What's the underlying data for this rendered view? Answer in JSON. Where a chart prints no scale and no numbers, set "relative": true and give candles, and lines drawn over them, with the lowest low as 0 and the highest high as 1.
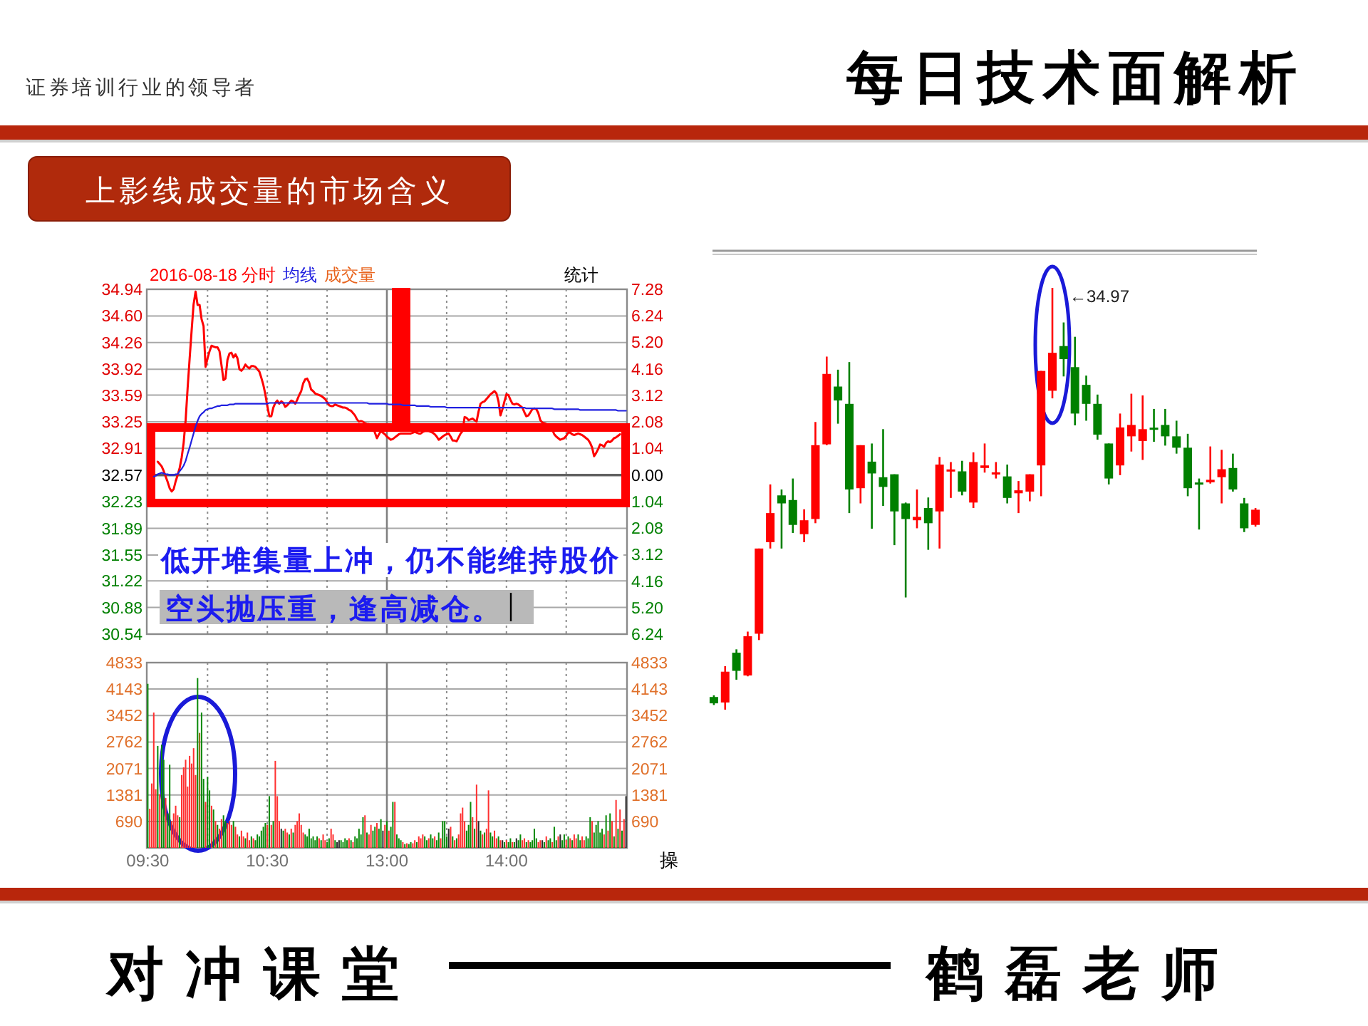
{
  "chart_data": [
    {
      "type": "line",
      "subtitle": "上影线成交量的市场含义",
      "legend": "top left",
      "categories": [
        null,
        null,
        null,
        null,
        null,
        null,
        null,
        null,
        null,
        null,
        null,
        null,
        null,
        null,
        null,
        null,
        null,
        null,
        null,
        null,
        null,
        null,
        null,
        null,
        null,
        null,
        null,
        null,
        null,
        null,
        null,
        null,
        null,
        null,
        null,
        null,
        null,
        null,
        null,
        null,
        null,
        null,
        null,
        null,
        null,
        null,
        null,
        null,
        null,
        null,
        null,
        null,
        null,
        null,
        null,
        null,
        null,
        null,
        null,
        null,
        null,
        null,
        null,
        null,
        null,
        null,
        null,
        null,
        null,
        null,
        null,
        null,
        null,
        null,
        null,
        null,
        null,
        null,
        null,
        null,
        null,
        null,
        null,
        null,
        null,
        null,
        null,
        null,
        null,
        null,
        null,
        null,
        null,
        null,
        null,
        null,
        null,
        null,
        null,
        null,
        null,
        null,
        null,
        null,
        null,
        null,
        null,
        null,
        null,
        null,
        null,
        null,
        null,
        null,
        null,
        null,
        null,
        null,
        null,
        null,
        null,
        null,
        null,
        null,
        null,
        null,
        null,
        null,
        null,
        null,
        null,
        null,
        null,
        null,
        null,
        null,
        null,
        null,
        null,
        null,
        null,
        null,
        null,
        null,
        null,
        null,
        null,
        null,
        null,
        null,
        null,
        null,
        null,
        null,
        null,
        null,
        null,
        null,
        null,
        null,
        null,
        null,
        null,
        null,
        null,
        null,
        null,
        null,
        null,
        null,
        null,
        null,
        null,
        null,
        null,
        null,
        null,
        null,
        null,
        null,
        null,
        null,
        null,
        null,
        null,
        null,
        null,
        null,
        null,
        null,
        null,
        null,
        null,
        null,
        null,
        null,
        null,
        null,
        null,
        null,
        null,
        null,
        null,
        null,
        null,
        null,
        null,
        null,
        null,
        null,
        null,
        null,
        null,
        null,
        null,
        null,
        null,
        null,
        null,
        null,
        null,
        null,
        null,
        null,
        null,
        null,
        null,
        null,
        null,
        null,
        null,
        null,
        null,
        null,
        null,
        null,
        null,
        null,
        null,
        null,
        null
      ],
      "series": [
        {
          "name": "2016-08-18 分时",
          "color": "#ff0000",
          "values": [
            null,
            null,
            null,
            null,
            null,
            32.74,
            32.71,
            32.68,
            32.62,
            32.55,
            32.48,
            32.4,
            32.36,
            32.39,
            32.49,
            32.57,
            32.66,
            32.79,
            32.98,
            33.27,
            33.68,
            34.05,
            34.41,
            34.75,
            34.91,
            34.74,
            34.74,
            34.56,
            34.47,
            33.95,
            34.06,
            34.15,
            34.22,
            34.21,
            34.2,
            34.2,
            34.15,
            33.97,
            33.78,
            33.8,
            34.04,
            34.12,
            34.13,
            34.07,
            34.11,
            34.06,
            33.92,
            33.9,
            33.93,
            33.98,
            33.95,
            33.93,
            33.96,
            33.96,
            33.95,
            33.92,
            33.89,
            33.81,
            33.72,
            33.6,
            33.45,
            33.32,
            33.32,
            33.43,
            33.49,
            33.52,
            33.48,
            33.51,
            33.49,
            33.44,
            33.46,
            33.49,
            33.52,
            33.51,
            33.48,
            33.53,
            33.59,
            33.64,
            33.74,
            33.79,
            33.8,
            33.75,
            33.66,
            33.64,
            33.61,
            33.6,
            33.59,
            33.58,
            33.56,
            33.54,
            33.5,
            33.46,
            33.45,
            33.45,
            33.47,
            33.46,
            33.45,
            33.44,
            33.43,
            33.43,
            33.42,
            33.4,
            33.39,
            33.36,
            33.33,
            33.28,
            33.25,
            33.26,
            33.25,
            33.23,
            33.22,
            33.22,
            33.2,
            33.19,
            33.11,
            33.04,
            33.09,
            33.13,
            33.11,
            33.09,
            33.06,
            33.04,
            33.02,
            33.03,
            33.05,
            33.07,
            33.09,
            33.1,
            33.1,
            33.1,
            33.1,
            33.1,
            33.1,
            33.11,
            33.12,
            33.11,
            33.1,
            33.1,
            33.12,
            33.13,
            33.13,
            33.13,
            33.12,
            33.11,
            33.09,
            33.06,
            33.02,
            33.04,
            33.06,
            33.08,
            33.09,
            33.1,
            33.06,
            33.01,
            33.01,
            33.0,
            33.05,
            33.1,
            33.13,
            33.31,
            33.3,
            33.27,
            33.28,
            33.29,
            33.27,
            33.25,
            33.38,
            33.48,
            33.5,
            33.51,
            33.54,
            33.57,
            33.6,
            33.62,
            33.64,
            33.61,
            33.51,
            33.33,
            33.41,
            33.51,
            33.6,
            33.59,
            33.53,
            33.48,
            33.47,
            33.48,
            33.47,
            33.45,
            33.43,
            33.37,
            33.32,
            33.33,
            33.37,
            33.41,
            33.42,
            33.41,
            33.36,
            33.27,
            33.24,
            33.23,
            33.22,
            33.21,
            33.2,
            33.15,
            33.09,
            33.06,
            33.04,
            33.02,
            33.03,
            33.04,
            33.07,
            33.11,
            33.11,
            33.09,
            33.08,
            33.09,
            33.1,
            33.09,
            33.08,
            33.06,
            33.04,
            33.02,
            32.98,
            32.92,
            32.81,
            32.85,
            32.9,
            32.96,
            32.95,
            32.93,
            32.98,
            33.0,
            32.99,
            33.01,
            33.04,
            33.05,
            33.07,
            33.09,
            null,
            null,
            null
          ]
        },
        {
          "name": "均线",
          "color": "#2020e0",
          "values": [
            null,
            null,
            null,
            32.55,
            32.56,
            32.58,
            32.59,
            32.6,
            32.59,
            32.58,
            32.58,
            32.57,
            32.57,
            32.57,
            32.58,
            32.58,
            32.62,
            32.65,
            32.69,
            32.75,
            32.84,
            32.92,
            33.01,
            33.1,
            33.19,
            33.26,
            33.32,
            33.35,
            33.37,
            33.4,
            33.41,
            33.42,
            33.42,
            33.43,
            33.44,
            33.45,
            33.45,
            33.46,
            33.46,
            33.46,
            33.46,
            33.47,
            33.47,
            33.47,
            33.48,
            33.48,
            33.48,
            33.48,
            33.48,
            33.48,
            33.48,
            33.48,
            33.48,
            33.48,
            33.48,
            33.48,
            33.48,
            33.48,
            33.48,
            33.48,
            33.48,
            33.49,
            33.49,
            33.49,
            33.49,
            33.49,
            33.49,
            33.49,
            33.49,
            33.49,
            33.49,
            33.49,
            33.49,
            33.49,
            33.49,
            33.49,
            33.49,
            33.49,
            33.49,
            33.49,
            33.49,
            33.49,
            33.49,
            33.49,
            33.49,
            33.49,
            33.49,
            33.49,
            33.49,
            33.49,
            33.49,
            33.49,
            33.49,
            33.49,
            33.49,
            33.49,
            33.49,
            33.49,
            33.49,
            33.49,
            33.49,
            33.49,
            33.49,
            33.49,
            33.49,
            33.49,
            33.49,
            33.49,
            33.49,
            33.49,
            33.49,
            33.48,
            33.48,
            33.48,
            33.48,
            33.48,
            33.48,
            33.48,
            33.48,
            33.48,
            33.48,
            33.47,
            33.47,
            33.47,
            33.47,
            33.47,
            33.47,
            33.47,
            33.46,
            33.46,
            33.46,
            33.46,
            33.46,
            33.46,
            33.46,
            33.45,
            33.45,
            33.45,
            33.45,
            33.45,
            33.45,
            33.45,
            33.44,
            33.44,
            33.44,
            33.44,
            33.44,
            33.44,
            33.44,
            33.44,
            33.43,
            33.43,
            33.43,
            33.43,
            33.43,
            33.43,
            33.43,
            33.43,
            33.43,
            33.43,
            33.43,
            33.43,
            33.43,
            33.43,
            33.43,
            33.43,
            33.43,
            33.43,
            33.43,
            33.43,
            33.43,
            33.43,
            33.43,
            33.43,
            33.43,
            33.43,
            33.43,
            33.43,
            33.43,
            33.43,
            33.43,
            33.43,
            33.43,
            33.43,
            33.43,
            33.43,
            33.43,
            33.43,
            33.43,
            33.43,
            33.42,
            33.42,
            33.42,
            33.42,
            33.42,
            33.42,
            33.42,
            33.42,
            33.42,
            33.42,
            33.42,
            33.42,
            33.42,
            33.42,
            33.41,
            33.41,
            33.41,
            33.41,
            33.41,
            33.41,
            33.41,
            33.41,
            33.41,
            33.41,
            33.41,
            33.41,
            33.41,
            33.4,
            33.4,
            33.4,
            33.4,
            33.4,
            33.4,
            33.4,
            33.4,
            33.4,
            33.4,
            33.4,
            33.4,
            33.4,
            33.4,
            33.4,
            33.4,
            33.4,
            33.4,
            33.4,
            33.39,
            33.39,
            33.39,
            33.39,
            33.39
          ]
        }
      ],
      "ylim": [
        30.54,
        34.94
      ],
      "yticks": [
        34.94,
        {
          "value": 34.6,
          "label": "34.60"
        },
        34.26,
        33.92,
        33.59,
        33.25,
        32.91,
        32.57,
        32.23,
        31.89,
        31.55,
        31.22,
        30.88,
        30.54
      ],
      "y2lim": [
        -6.24,
        7.28
      ],
      "y2ticks": [
        7.28,
        6.24,
        {
          "value": 5.2,
          "label": "5.20"
        },
        4.16,
        3.12,
        2.08,
        1.04,
        {
          "value": 0,
          "label": "0.00"
        },
        {
          "value": -1.04,
          "label": "1.04"
        },
        {
          "value": -2.08,
          "label": "2.08"
        },
        {
          "value": -3.12,
          "label": "3.12"
        },
        {
          "value": -4.16,
          "label": "4.16"
        },
        {
          "value": -5.2,
          "label": "5.20"
        },
        {
          "value": -6.24,
          "label": "6.24"
        }
      ],
      "grid": true,
      "ref_lines": [
        {
          "axis": "y",
          "value": 32.57,
          "color": "#606060"
        }
      ],
      "tick_labels": "y",
      "annotations": [
        "证券培训行业的领导者",
        "成交量",
        "统计",
        "低开堆集量上冲，仍不能维持股价",
        "空头抛压重，逢高减仓。",
        "对冲课堂"
      ]
    },
    {
      "type": "bar",
      "categories": [
        "09:30",
        null,
        null,
        null,
        null,
        null,
        null,
        null,
        null,
        null,
        null,
        null,
        null,
        null,
        null,
        null,
        null,
        null,
        null,
        null,
        null,
        null,
        null,
        null,
        null,
        null,
        null,
        null,
        null,
        null,
        null,
        null,
        null,
        null,
        null,
        null,
        null,
        null,
        null,
        null,
        null,
        null,
        null,
        null,
        null,
        null,
        null,
        null,
        null,
        null,
        null,
        null,
        null,
        null,
        null,
        null,
        null,
        null,
        null,
        null,
        "10:30",
        null,
        null,
        null,
        null,
        null,
        null,
        null,
        null,
        null,
        null,
        null,
        null,
        null,
        null,
        null,
        null,
        null,
        null,
        null,
        null,
        null,
        null,
        null,
        null,
        null,
        null,
        null,
        null,
        null,
        null,
        null,
        null,
        null,
        null,
        null,
        null,
        null,
        null,
        null,
        null,
        null,
        null,
        null,
        null,
        null,
        null,
        null,
        null,
        null,
        null,
        null,
        null,
        null,
        null,
        null,
        null,
        null,
        null,
        null,
        "13:00",
        null,
        null,
        null,
        null,
        null,
        null,
        null,
        null,
        null,
        null,
        null,
        null,
        null,
        null,
        null,
        null,
        null,
        null,
        null,
        null,
        null,
        null,
        null,
        null,
        null,
        null,
        null,
        null,
        null,
        null,
        null,
        null,
        null,
        null,
        null,
        null,
        null,
        null,
        null,
        null,
        null,
        null,
        null,
        null,
        null,
        null,
        null,
        null,
        null,
        null,
        null,
        null,
        null,
        null,
        null,
        null,
        null,
        null,
        null,
        "14:00",
        null,
        null,
        null,
        null,
        null,
        null,
        null,
        null,
        null,
        null,
        null,
        null,
        null,
        null,
        null,
        null,
        null,
        null,
        null,
        null,
        null,
        null,
        null,
        null,
        null,
        null,
        null,
        null,
        null,
        null,
        null,
        null,
        null,
        null,
        null,
        null,
        null,
        null,
        null,
        null,
        null,
        null,
        null,
        null,
        null,
        null,
        null,
        null,
        null,
        null,
        null,
        null,
        null,
        null,
        null,
        null,
        null,
        null,
        null,
        null
      ],
      "values": [
        4280,
        1020,
        1680,
        3530,
        1530,
        2660,
        1400,
        2690,
        2300,
        1300,
        900,
        2170,
        700,
        900,
        1100,
        850,
        800,
        1900,
        2100,
        2300,
        1600,
        2400,
        2200,
        2600,
        1900,
        4430,
        3000,
        3530,
        1800,
        1200,
        1850,
        1500,
        1100,
        1000,
        700,
        600,
        500,
        750,
        850,
        700,
        650,
        700,
        600,
        700,
        550,
        350,
        300,
        450,
        300,
        250,
        400,
        200,
        300,
        250,
        200,
        350,
        300,
        450,
        550,
        650,
        600,
        1350,
        600,
        700,
        2270,
        1350,
        700,
        500,
        450,
        500,
        400,
        350,
        500,
        400,
        600,
        700,
        900,
        600,
        400,
        350,
        300,
        500,
        250,
        300,
        200,
        300,
        250,
        200,
        350,
        200,
        150,
        250,
        500,
        350,
        200,
        150,
        200,
        200,
        150,
        250,
        200,
        250,
        200,
        150,
        300,
        250,
        500,
        350,
        800,
        850,
        400,
        350,
        600,
        450,
        550,
        650,
        500,
        750,
        450,
        600,
        700,
        450,
        550,
        1200,
        1200,
        350,
        250,
        200,
        150,
        100,
        120,
        100,
        150,
        120,
        200,
        150,
        300,
        250,
        350,
        300,
        200,
        250,
        350,
        250,
        300,
        200,
        400,
        250,
        700,
        700,
        300,
        500,
        550,
        300,
        200,
        250,
        350,
        900,
        1050,
        700,
        450,
        600,
        1200,
        800,
        500,
        1650,
        700,
        450,
        350,
        400,
        500,
        1500,
        400,
        300,
        450,
        250,
        300,
        200,
        200,
        150,
        200,
        150,
        250,
        150,
        150,
        250,
        200,
        350,
        200,
        250,
        150,
        200,
        150,
        200,
        500,
        250,
        150,
        200,
        200,
        150,
        300,
        200,
        250,
        150,
        550,
        200,
        300,
        350,
        200,
        350,
        200,
        300,
        250,
        200,
        350,
        250,
        350,
        200,
        300,
        200,
        300,
        250,
        800,
        700,
        400,
        600,
        700,
        400,
        500,
        350,
        850,
        450,
        900,
        700,
        300,
        1250,
        500,
        1000,
        450,
        750,
        1350
      ],
      "colors": [
        "#0a8a0a",
        "#ff3030",
        "#ff3030",
        "#ff3030",
        "#ff3030",
        "#0a8a0a",
        "#ff3030",
        "#0a8a0a",
        "#0a8a0a",
        "#ff3030",
        "#0a8a0a",
        "#0a8a0a",
        "#ff3030",
        "#ff3030",
        "#ff3030",
        "#ff3030",
        "#0a8a0a",
        "#ff3030",
        "#ff3030",
        "#ff3030",
        "#ff3030",
        "#ff3030",
        "#ff3030",
        "#ff3030",
        "#ff3030",
        "#0a8a0a",
        "#8a6a10",
        "#0a8a0a",
        "#0a8a0a",
        "#ff3030",
        "#0a8a0a",
        "#0a8a0a",
        "#ff3030",
        "#0a8a0a",
        "#ff3030",
        "#0a8a0a",
        "#ff3030",
        "#ff3030",
        "#0a8a0a",
        "#0a8a0a",
        "#ff3030",
        "#ff3030",
        "#ff3030",
        "#0a8a0a",
        "#ff3030",
        "#ff3030",
        "#0a8a0a",
        "#ff3030",
        "#ff3030",
        "#0a8a0a",
        "#ff3030",
        "#ff3030",
        "#0a8a0a",
        "#ff3030",
        "#0a8a0a",
        "#0a8a0a",
        "#0a8a0a",
        "#0a8a0a",
        "#0a8a0a",
        "#0a8a0a",
        "#ff3030",
        "#0a8a0a",
        "#ff3030",
        "#0a8a0a",
        "#ff3030",
        "#ff3030",
        "#ff3030",
        "#2a2a2a",
        "#0a8a0a",
        "#ff3030",
        "#ff3030",
        "#0a8a0a",
        "#ff3030",
        "#0a8a0a",
        "#ff3030",
        "#ff3030",
        "#ff3030",
        "#ff3030",
        "#ff3030",
        "#0a8a0a",
        "#0a8a0a",
        "#0a8a0a",
        "#0a8a0a",
        "#0a8a0a",
        "#0a8a0a",
        "#0a8a0a",
        "#ff3030",
        "#0a8a0a",
        "#ff3030",
        "#ff3030",
        "#0a8a0a",
        "#0a8a0a",
        "#ff3030",
        "#ff3030",
        "#0a8a0a",
        "#2a2a2a",
        "#2a2a2a",
        "#0a8a0a",
        "#0a8a0a",
        "#0a8a0a",
        "#0a8a0a",
        "#ff3030",
        "#0a8a0a",
        "#ff3030",
        "#0a8a0a",
        "#0a8a0a",
        "#0a8a0a",
        "#0a8a0a",
        "#0a8a0a",
        "#ff3030",
        "#0a8a0a",
        "#ff3030",
        "#ff3030",
        "#0a8a0a",
        "#0a8a0a",
        "#ff3030",
        "#0a8a0a",
        "#0a8a0a",
        "#2a2a2a",
        "#ff3030",
        "#0a8a0a",
        "#ff3030",
        "#0a8a0a",
        "#0a8a0a",
        "#ff3030",
        "#0a8a0a",
        "#0a8a0a",
        "#0a8a0a",
        "#ff3030",
        "#0a8a0a",
        "#ff3030",
        "#0a8a0a",
        "#0a8a0a",
        "#ff3030",
        "#ff3030",
        "#0a8a0a",
        "#ff3030",
        "#ff3030",
        "#ff3030",
        "#0a8a0a",
        "#0a8a0a",
        "#ff3030",
        "#0a8a0a",
        "#0a8a0a",
        "#ff3030",
        "#0a8a0a",
        "#0a8a0a",
        "#ff3030",
        "#0a8a0a",
        "#0a8a0a",
        "#0a8a0a",
        "#2a2a2a",
        "#ff3030",
        "#0a8a0a",
        "#ff3030",
        "#0a8a0a",
        "#ff3030",
        "#ff3030",
        "#ff3030",
        "#ff3030",
        "#0a8a0a",
        "#0a8a0a",
        "#0a8a0a",
        "#ff3030",
        "#0a8a0a",
        "#ff3030",
        "#2a2a2a",
        "#0a8a0a",
        "#ff3030",
        "#0a8a0a",
        "#ff3030",
        "#ff3030",
        "#0a8a0a",
        "#0a8a0a",
        "#ff3030",
        "#ff3030",
        "#0a8a0a",
        "#ff3030",
        "#2a2a2a",
        "#0a8a0a",
        "#ff3030",
        "#0a8a0a",
        "#0a8a0a",
        "#ff3030",
        "#0a8a0a",
        "#2a2a2a",
        "#0a8a0a",
        "#0a8a0a",
        "#ff3030",
        "#ff3030",
        "#0a8a0a",
        "#ff3030",
        "#0a8a0a",
        "#0a8a0a",
        "#0a8a0a",
        "#0a8a0a",
        "#ff3030",
        "#ff3030",
        "#2a2a2a",
        "#0a8a0a",
        "#ff3030",
        "#0a8a0a",
        "#0a8a0a",
        "#ff3030",
        "#0a8a0a",
        "#0a8a0a",
        "#ff3030",
        "#2a2a2a",
        "#0a8a0a",
        "#0a8a0a",
        "#ff3030",
        "#0a8a0a",
        "#ff3030",
        "#0a8a0a",
        "#ff3030",
        "#ff3030",
        "#0a8a0a",
        "#0a8a0a",
        "#ff3030",
        "#ff3030",
        "#0a8a0a",
        "#0a8a0a",
        "#0a8a0a",
        "#ff3030",
        "#0a8a0a",
        "#0a8a0a",
        "#0a8a0a",
        "#0a8a0a",
        "#0a8a0a",
        "#ff3030",
        "#0a8a0a",
        "#ff3030",
        "#0a8a0a",
        "#ff3030",
        "#0a8a0a",
        "#ff3030",
        "#0a8a0a",
        "#ff3030",
        "#0a8a0a",
        "#ff3030",
        "#2a2a2a"
      ],
      "ylim": [
        0,
        4833
      ],
      "yticks": [
        690,
        1381,
        2071,
        2762,
        3452,
        4143,
        4833
      ],
      "y2lim": [
        0,
        4833
      ],
      "y2ticks": [
        690,
        1381,
        2071,
        2762,
        3452,
        4143,
        4833
      ],
      "grid": true,
      "annotations": [
        "操"
      ]
    },
    {
      "type": "candlestick",
      "title": "每日技术面解析",
      "relative": true,
      "categories": [
        null,
        null,
        null,
        null,
        null,
        null,
        null,
        null,
        null,
        null,
        null,
        null,
        null,
        null,
        null,
        null,
        null,
        null,
        null,
        null,
        null,
        null,
        null,
        null,
        null,
        null,
        null,
        null,
        null,
        null,
        null,
        null,
        null,
        null,
        null,
        null,
        null,
        null,
        null,
        null,
        null,
        null,
        null,
        null,
        null,
        null,
        null,
        null,
        null
      ],
      "ohlc": [
        [
          0.03,
          0.034,
          0.011,
          0.015
        ],
        [
          0.017,
          0.103,
          0,
          0.09
        ],
        [
          0.135,
          0.143,
          0.071,
          0.092
        ],
        [
          0.081,
          0.185,
          0.079,
          0.174
        ],
        [
          0.18,
          0.382,
          0.165,
          0.382
        ],
        [
          0.397,
          0.534,
          0.382,
          0.466
        ],
        [
          0.508,
          0.522,
          0.382,
          0.489
        ],
        [
          0.497,
          0.548,
          0.419,
          0.438
        ],
        [
          0.416,
          0.475,
          0.397,
          0.449
        ],
        [
          0.452,
          0.682,
          0.442,
          0.627
        ],
        [
          0.629,
          0.837,
          0.627,
          0.796
        ],
        [
          0.766,
          0.806,
          0.678,
          0.733
        ],
        [
          0.725,
          0.824,
          0.466,
          0.522
        ],
        [
          0.525,
          0.627,
          0.489,
          0.627
        ],
        [
          0.588,
          0.631,
          0.429,
          0.56
        ],
        [
          0.551,
          0.665,
          0.483,
          0.528
        ],
        [
          0.558,
          0.558,
          0.39,
          0.47
        ],
        [
          0.489,
          0.491,
          0.266,
          0.452
        ],
        [
          0.449,
          0.522,
          0.43,
          0.457
        ],
        [
          0.478,
          0.503,
          0.379,
          0.442
        ],
        [
          0.47,
          0.599,
          0.382,
          0.581
        ],
        [
          0.563,
          0.587,
          0.502,
          0.567
        ],
        [
          0.565,
          0.59,
          0.508,
          0.517
        ],
        [
          0.491,
          0.61,
          0.478,
          0.587
        ],
        [
          0.573,
          0.631,
          0.562,
          0.579
        ],
        [
          0.556,
          0.587,
          0.548,
          0.56
        ],
        [
          0.553,
          0.581,
          0.489,
          0.502
        ],
        [
          0.513,
          0.542,
          0.466,
          0.52
        ],
        [
          0.517,
          0.558,
          0.494,
          0.558
        ],
        [
          0.579,
          0.803,
          0.506,
          0.803
        ],
        [
          0.756,
          1,
          0.738,
          0.846
        ],
        [
          0.862,
          0.918,
          0.79,
          0.831
        ],
        [
          0.812,
          0.884,
          0.674,
          0.702
        ],
        [
          0.77,
          0.792,
          0.685,
          0.725
        ],
        [
          0.725,
          0.747,
          0.64,
          0.652
        ],
        [
          0.631,
          0.631,
          0.534,
          0.548
        ],
        [
          0.579,
          0.702,
          0.556,
          0.669
        ],
        [
          0.648,
          0.749,
          0.612,
          0.675
        ],
        [
          0.637,
          0.745,
          0.592,
          0.665
        ],
        [
          0.666,
          0.713,
          0.635,
          0.662
        ],
        [
          0.675,
          0.713,
          0.626,
          0.648
        ],
        [
          0.648,
          0.685,
          0.607,
          0.621
        ],
        [
          0.621,
          0.654,
          0.506,
          0.525
        ],
        [
          0.536,
          0.548,
          0.427,
          0.531
        ],
        [
          0.539,
          0.624,
          0.536,
          0.545
        ],
        [
          0.551,
          0.616,
          0.489,
          0.57
        ],
        [
          0.573,
          0.607,
          0.517,
          0.522
        ],
        [
          0.489,
          0.502,
          0.421,
          0.43
        ],
        [
          0.438,
          0.478,
          0.434,
          0.474
        ]
      ],
      "colors": [
        "#008000",
        "#ff0000",
        "#008000",
        "#ff0000",
        "#ff0000",
        "#ff0000",
        "#008000",
        "#008000",
        "#ff0000",
        "#ff0000",
        "#ff0000",
        "#008000",
        "#008000",
        "#ff0000",
        "#008000",
        "#008000",
        "#008000",
        "#008000",
        "#ff0000",
        "#008000",
        "#ff0000",
        "#ff0000",
        "#008000",
        "#ff0000",
        "#ff0000",
        "#ff0000",
        "#008000",
        "#ff0000",
        "#ff0000",
        "#ff0000",
        "#ff0000",
        "#008000",
        "#008000",
        "#008000",
        "#008000",
        "#008000",
        "#ff0000",
        "#ff0000",
        "#ff0000",
        "#008000",
        "#008000",
        "#008000",
        "#008000",
        "#008000",
        "#ff0000",
        "#ff0000",
        "#008000",
        "#008000",
        "#ff0000"
      ],
      "annotations": [
        "←34.97",
        "鹤磊老师"
      ]
    }
  ]
}
